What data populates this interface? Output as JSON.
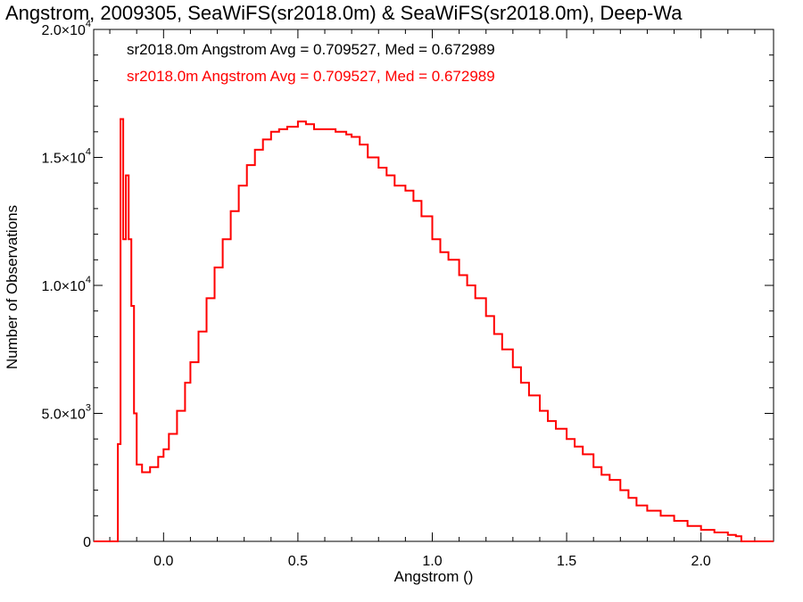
{
  "chart_data": {
    "type": "histogram",
    "title": "Angstrom, 2009305, SeaWiFS(sr2018.0m) & SeaWiFS(sr2018.0m), Deep-Wa",
    "xlabel": "Angstrom ()",
    "ylabel": "Number of Observations",
    "xlim": [
      -0.26,
      2.27
    ],
    "ylim": [
      0,
      20000
    ],
    "x_ticks": [
      {
        "value": 0.0,
        "label": "0.0"
      },
      {
        "value": 0.5,
        "label": "0.5"
      },
      {
        "value": 1.0,
        "label": "1.0"
      },
      {
        "value": 1.5,
        "label": "1.5"
      },
      {
        "value": 2.0,
        "label": "2.0"
      }
    ],
    "y_ticks": [
      {
        "value": 0,
        "mant": "0",
        "exp": ""
      },
      {
        "value": 5000,
        "mant": "5.0×10",
        "exp": "3"
      },
      {
        "value": 10000,
        "mant": "1.0×10",
        "exp": "4"
      },
      {
        "value": 15000,
        "mant": "1.5×10",
        "exp": "4"
      },
      {
        "value": 20000,
        "mant": "2.0×10",
        "exp": "4"
      }
    ],
    "legend": [
      {
        "text": "sr2018.0m Angstrom Avg = 0.709527, Med = 0.672989",
        "color": "#000000"
      },
      {
        "text": "sr2018.0m Angstrom Avg = 0.709527, Med = 0.672989",
        "color": "#ff0000"
      }
    ],
    "series": [
      {
        "color": "#ff0000",
        "points": [
          [
            -0.26,
            0
          ],
          [
            -0.18,
            0
          ],
          [
            -0.17,
            3800
          ],
          [
            -0.16,
            16500
          ],
          [
            -0.15,
            11800
          ],
          [
            -0.14,
            14300
          ],
          [
            -0.13,
            11800
          ],
          [
            -0.12,
            9200
          ],
          [
            -0.11,
            5000
          ],
          [
            -0.1,
            3000
          ],
          [
            -0.08,
            2700
          ],
          [
            -0.05,
            2900
          ],
          [
            -0.02,
            3300
          ],
          [
            0.0,
            3600
          ],
          [
            0.02,
            4200
          ],
          [
            0.05,
            5100
          ],
          [
            0.08,
            6200
          ],
          [
            0.1,
            7000
          ],
          [
            0.13,
            8200
          ],
          [
            0.16,
            9500
          ],
          [
            0.19,
            10700
          ],
          [
            0.22,
            11800
          ],
          [
            0.25,
            12900
          ],
          [
            0.28,
            13900
          ],
          [
            0.31,
            14700
          ],
          [
            0.34,
            15300
          ],
          [
            0.37,
            15700
          ],
          [
            0.4,
            16000
          ],
          [
            0.43,
            16100
          ],
          [
            0.46,
            16200
          ],
          [
            0.5,
            16400
          ],
          [
            0.53,
            16300
          ],
          [
            0.56,
            16100
          ],
          [
            0.6,
            16100
          ],
          [
            0.64,
            16000
          ],
          [
            0.68,
            15900
          ],
          [
            0.7,
            15800
          ],
          [
            0.73,
            15500
          ],
          [
            0.76,
            15000
          ],
          [
            0.8,
            14600
          ],
          [
            0.83,
            14300
          ],
          [
            0.86,
            13900
          ],
          [
            0.9,
            13700
          ],
          [
            0.93,
            13300
          ],
          [
            0.96,
            12700
          ],
          [
            1.0,
            11800
          ],
          [
            1.03,
            11300
          ],
          [
            1.06,
            11000
          ],
          [
            1.1,
            10400
          ],
          [
            1.13,
            10000
          ],
          [
            1.16,
            9500
          ],
          [
            1.2,
            8800
          ],
          [
            1.23,
            8100
          ],
          [
            1.26,
            7500
          ],
          [
            1.3,
            6800
          ],
          [
            1.33,
            6200
          ],
          [
            1.36,
            5700
          ],
          [
            1.4,
            5100
          ],
          [
            1.43,
            4700
          ],
          [
            1.46,
            4400
          ],
          [
            1.5,
            4000
          ],
          [
            1.53,
            3700
          ],
          [
            1.56,
            3400
          ],
          [
            1.6,
            2900
          ],
          [
            1.63,
            2600
          ],
          [
            1.66,
            2400
          ],
          [
            1.7,
            2000
          ],
          [
            1.73,
            1700
          ],
          [
            1.76,
            1400
          ],
          [
            1.8,
            1200
          ],
          [
            1.85,
            1000
          ],
          [
            1.9,
            800
          ],
          [
            1.95,
            600
          ],
          [
            2.0,
            450
          ],
          [
            2.05,
            350
          ],
          [
            2.1,
            250
          ],
          [
            2.13,
            200
          ],
          [
            2.15,
            0
          ],
          [
            2.27,
            0
          ]
        ]
      }
    ]
  }
}
